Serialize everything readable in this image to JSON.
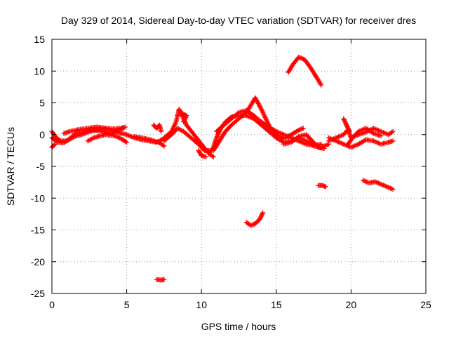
{
  "chart_data": {
    "type": "scatter",
    "title": "Day 329 of 2014, Sidereal Day-to-day VTEC variation (SDTVAR) for receiver dres",
    "xlabel": "GPS time / hours",
    "ylabel": "SDTVAR / TECUs",
    "xlim": [
      0,
      25
    ],
    "ylim": [
      -25,
      15
    ],
    "xticks": [
      0,
      5,
      10,
      15,
      20,
      25
    ],
    "yticks": [
      15,
      10,
      5,
      0,
      -5,
      -10,
      -15,
      -20,
      -25
    ],
    "grid": true,
    "marker": "+",
    "series_color": "#ff0000",
    "series": [
      {
        "name": "SDTVAR",
        "segments": [
          {
            "points": [
              [
                0,
                0.5
              ],
              [
                0.3,
                -0.5
              ],
              [
                0.6,
                -1
              ],
              [
                1,
                -1
              ],
              [
                1.5,
                -0.3
              ],
              [
                2,
                0
              ],
              [
                2.5,
                0.5
              ],
              [
                3,
                0.7
              ],
              [
                3.5,
                1
              ],
              [
                4,
                0.6
              ],
              [
                4.5,
                0.3
              ],
              [
                5,
                0
              ],
              [
                5.5,
                -0.5
              ],
              [
                6,
                -0.8
              ],
              [
                6.5,
                -1
              ],
              [
                7,
                -1.2
              ],
              [
                7.5,
                -0.6
              ]
            ]
          },
          {
            "points": [
              [
                0,
                -0.5
              ],
              [
                0.4,
                -1.2
              ],
              [
                0.8,
                -1.3
              ],
              [
                1.2,
                -0.6
              ],
              [
                1.6,
                0.2
              ],
              [
                2.2,
                0.4
              ],
              [
                2.8,
                0.8
              ],
              [
                3.4,
                0.5
              ],
              [
                4,
                0.2
              ],
              [
                4.6,
                0.8
              ],
              [
                4.9,
                1.2
              ]
            ]
          },
          {
            "points": [
              [
                0,
                -2
              ],
              [
                0.2,
                -1.5
              ]
            ]
          },
          {
            "points": [
              [
                0.8,
                0.2
              ],
              [
                1.2,
                0.5
              ],
              [
                1.8,
                0.8
              ],
              [
                2.4,
                1
              ],
              [
                3,
                1.2
              ],
              [
                3.6,
                1
              ],
              [
                4.2,
                0.9
              ],
              [
                4.8,
                1.1
              ]
            ]
          },
          {
            "points": [
              [
                2.4,
                -1
              ],
              [
                2.8,
                -0.5
              ],
              [
                3.2,
                -0.2
              ],
              [
                3.6,
                0
              ],
              [
                4.2,
                -0.2
              ],
              [
                4.6,
                -0.6
              ],
              [
                5,
                -1.2
              ]
            ]
          },
          {
            "points": [
              [
                5.5,
                -0.3
              ],
              [
                6,
                -0.5
              ],
              [
                6.6,
                -0.8
              ],
              [
                7.2,
                -1.3
              ],
              [
                7.5,
                -1.8
              ]
            ]
          },
          {
            "points": [
              [
                6.8,
                1.5
              ],
              [
                7,
                1
              ],
              [
                7.2,
                1.5
              ],
              [
                7.3,
                0.5
              ]
            ]
          },
          {
            "points": [
              [
                7.5,
                -0.5
              ],
              [
                8,
                0.5
              ],
              [
                8.3,
                2
              ],
              [
                8.5,
                4
              ],
              [
                8.7,
                3
              ],
              [
                9,
                1.5
              ],
              [
                9.5,
                0
              ],
              [
                10,
                -1.5
              ],
              [
                10.5,
                -3
              ],
              [
                10.8,
                -3.5
              ]
            ]
          },
          {
            "points": [
              [
                7.5,
                -1
              ],
              [
                8,
                0
              ],
              [
                8.4,
                1
              ],
              [
                8.8,
                0.5
              ],
              [
                9.3,
                -0.5
              ],
              [
                9.8,
                -1.5
              ],
              [
                10.2,
                -2.5
              ],
              [
                10.5,
                -2.5
              ]
            ]
          },
          {
            "points": [
              [
                8.8,
                2
              ],
              [
                9,
                3
              ],
              [
                8.6,
                3.5
              ]
            ]
          },
          {
            "points": [
              [
                9.8,
                -2.5
              ],
              [
                10,
                -3.3
              ],
              [
                10.3,
                -3.5
              ]
            ]
          },
          {
            "points": [
              [
                10.5,
                -3
              ],
              [
                10.8,
                -2
              ],
              [
                11,
                -0.5
              ],
              [
                11.3,
                1
              ],
              [
                11.6,
                2
              ],
              [
                12,
                2.8
              ],
              [
                12.5,
                3
              ],
              [
                13,
                3
              ],
              [
                13.5,
                2.5
              ],
              [
                14,
                1.5
              ],
              [
                14.5,
                0.5
              ],
              [
                15,
                -0.5
              ],
              [
                15.5,
                -1.2
              ],
              [
                16,
                -1
              ],
              [
                16.5,
                -0.5
              ],
              [
                17,
                -1
              ],
              [
                17.5,
                -1.8
              ],
              [
                18,
                -2
              ],
              [
                18.5,
                -1.5
              ]
            ]
          },
          {
            "points": [
              [
                10.8,
                -2.5
              ],
              [
                11.2,
                -1
              ],
              [
                11.6,
                0.5
              ],
              [
                12,
                1.5
              ],
              [
                12.5,
                2.5
              ],
              [
                13,
                3.5
              ],
              [
                13.4,
                5
              ],
              [
                13.6,
                5.8
              ],
              [
                14,
                4
              ],
              [
                14.3,
                2.5
              ],
              [
                14.6,
                1
              ],
              [
                15,
                0
              ],
              [
                15.5,
                -0.6
              ],
              [
                16,
                0
              ],
              [
                16.5,
                0.7
              ],
              [
                16.8,
                1
              ]
            ]
          },
          {
            "points": [
              [
                11,
                0.5
              ],
              [
                11.5,
                1.5
              ],
              [
                12,
                2.5
              ],
              [
                12.5,
                3.5
              ],
              [
                13,
                3.8
              ],
              [
                13.5,
                3
              ],
              [
                14,
                2
              ],
              [
                14.5,
                1.2
              ],
              [
                15,
                0.5
              ],
              [
                15.5,
                0
              ],
              [
                16,
                -0.5
              ],
              [
                16.5,
                -1
              ],
              [
                17,
                -1.5
              ],
              [
                17.5,
                -1.7
              ],
              [
                18,
                -1.5
              ]
            ]
          },
          {
            "points": [
              [
                13,
                -13.8
              ],
              [
                13.3,
                -14.3
              ],
              [
                13.6,
                -14
              ],
              [
                13.9,
                -13.3
              ],
              [
                14.1,
                -12.3
              ]
            ]
          },
          {
            "points": [
              [
                15.8,
                9.8
              ],
              [
                16.1,
                11
              ],
              [
                16.5,
                12.2
              ],
              [
                16.9,
                11.8
              ],
              [
                17.3,
                10.5
              ],
              [
                17.7,
                9
              ],
              [
                18,
                7.8
              ]
            ]
          },
          {
            "points": [
              [
                15.5,
                -1.5
              ],
              [
                16,
                -1.2
              ],
              [
                16.5,
                -0.3
              ],
              [
                17,
                0
              ],
              [
                17.4,
                -1
              ],
              [
                17.8,
                -2
              ],
              [
                18.2,
                -2.2
              ]
            ]
          },
          {
            "points": [
              [
                17.8,
                -8
              ],
              [
                18.1,
                -8
              ],
              [
                18.3,
                -8.2
              ]
            ]
          },
          {
            "points": [
              [
                18.5,
                -1
              ],
              [
                19,
                -0.5
              ],
              [
                19.5,
                0
              ],
              [
                19.8,
                0.8
              ],
              [
                20,
                -0.5
              ],
              [
                20.5,
                0
              ],
              [
                21,
                0.4
              ],
              [
                21.5,
                1
              ],
              [
                22,
                0.5
              ],
              [
                22.5,
                0
              ],
              [
                22.8,
                0.5
              ]
            ]
          },
          {
            "points": [
              [
                18.5,
                -0.5
              ],
              [
                19,
                -1
              ],
              [
                19.5,
                -1.5
              ],
              [
                20,
                -2
              ],
              [
                20.5,
                -1.5
              ],
              [
                21,
                -0.8
              ],
              [
                21.5,
                -1
              ],
              [
                22,
                -1.5
              ],
              [
                22.5,
                -1.2
              ],
              [
                22.8,
                -1
              ]
            ]
          },
          {
            "points": [
              [
                19.5,
                2.5
              ],
              [
                19.7,
                1.5
              ],
              [
                19.9,
                0.5
              ]
            ]
          },
          {
            "points": [
              [
                19.8,
                -1.5
              ],
              [
                20.1,
                -0.5
              ],
              [
                20.5,
                0.5
              ],
              [
                21,
                1
              ],
              [
                21.5,
                0.2
              ],
              [
                22,
                -0.2
              ]
            ]
          },
          {
            "points": [
              [
                20.8,
                -7.2
              ],
              [
                21.2,
                -7.6
              ],
              [
                21.6,
                -7.4
              ],
              [
                22,
                -7.8
              ],
              [
                22.4,
                -8.2
              ],
              [
                22.8,
                -8.6
              ]
            ]
          },
          {
            "points": [
              [
                7,
                -22.8
              ],
              [
                7.3,
                -22.9
              ],
              [
                7.5,
                -22.8
              ]
            ]
          }
        ]
      }
    ]
  }
}
